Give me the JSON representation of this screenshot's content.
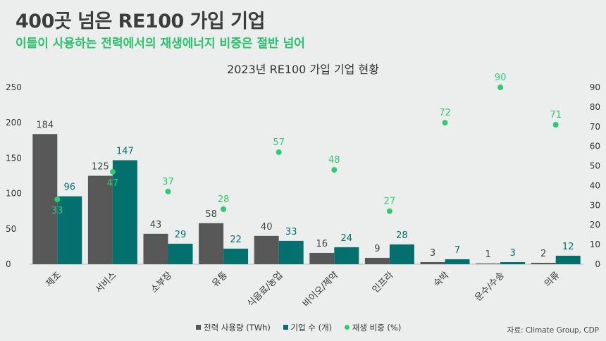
{
  "header": {
    "headline": "400곳 넘은 RE100 가입 기업",
    "subhead": "이들이 사용하는 전력에서의 재생에너지 비중은 절반 넘어"
  },
  "source": "자료: Climate Group, CDP",
  "colors": {
    "usage": "#575757",
    "companies": "#04706d",
    "share": "#2ecc71"
  },
  "chart_data": {
    "type": "bar",
    "title": "2023년 RE100 가입 기업 현황",
    "categories": [
      "제조",
      "서비스",
      "소부장",
      "유통",
      "식음료/농업",
      "바이오/제약",
      "인프라",
      "숙박",
      "운수/수송",
      "의류"
    ],
    "series": [
      {
        "name": "전력 사용량 (TWh)",
        "kind": "bar",
        "axis": "left",
        "values": [
          184,
          125,
          43,
          58,
          40,
          16,
          9,
          3,
          1,
          2
        ]
      },
      {
        "name": "기업 수 (개)",
        "kind": "bar",
        "axis": "left",
        "values": [
          96,
          147,
          29,
          22,
          33,
          24,
          28,
          7,
          3,
          12
        ]
      },
      {
        "name": "재생 비중 (%)",
        "kind": "scatter",
        "axis": "right",
        "values": [
          33,
          47,
          37,
          28,
          57,
          48,
          27,
          72,
          90,
          71
        ]
      }
    ],
    "y_left": {
      "min": 0,
      "max": 250,
      "ticks": [
        "0",
        "50",
        "100",
        "150",
        "200",
        "250"
      ]
    },
    "y_right": {
      "min": 0,
      "max": 90,
      "ticks": [
        "0",
        "10",
        "20",
        "30",
        "40",
        "50",
        "60",
        "70",
        "80",
        "90"
      ]
    },
    "grid": false,
    "legend": "bottom-center"
  }
}
